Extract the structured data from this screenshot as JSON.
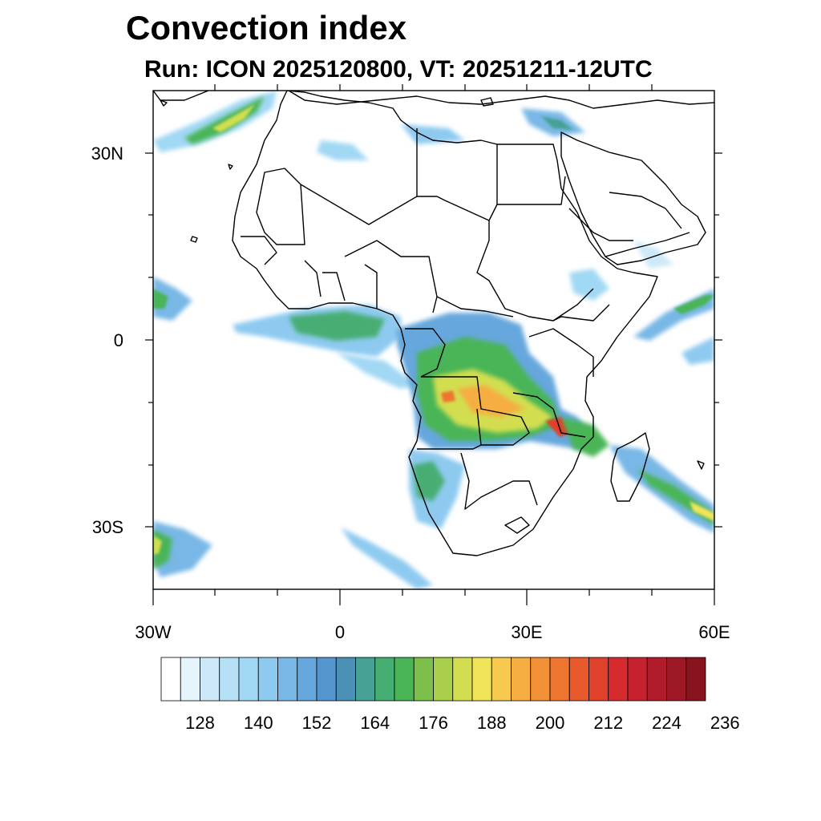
{
  "title": "Convection index",
  "subtitle": "Run: ICON 2025120800,  VT: 20251211-12UTC",
  "map": {
    "region": "Africa and Arabian Peninsula",
    "lon_range": [
      -30,
      60
    ],
    "lat_range": [
      -40,
      40
    ],
    "lat_labels": [
      "30N",
      "0",
      "30S"
    ],
    "lon_labels": [
      "30W",
      "0",
      "30E",
      "60E"
    ],
    "coastline_color": "#000000",
    "ocean_color": "#ffffff"
  },
  "colorbar": {
    "labels": [
      "128",
      "140",
      "152",
      "164",
      "176",
      "188",
      "200",
      "212",
      "224",
      "236"
    ],
    "colors": [
      "#ffffff",
      "#e6f4fb",
      "#cde9f7",
      "#b6e0f5",
      "#a1d8f4",
      "#8ecaf0",
      "#78b7e6",
      "#66a7dd",
      "#5696cf",
      "#4b91b6",
      "#47a195",
      "#46ad73",
      "#4ab556",
      "#7cbf4a",
      "#a9ce4b",
      "#d2de50",
      "#f0e45a",
      "#f8c94f",
      "#f6ad42",
      "#f29137",
      "#ee752f",
      "#e8592b",
      "#e0412b",
      "#d62b2e",
      "#c5212f",
      "#b11c2b",
      "#9c1825",
      "#86131d"
    ]
  }
}
